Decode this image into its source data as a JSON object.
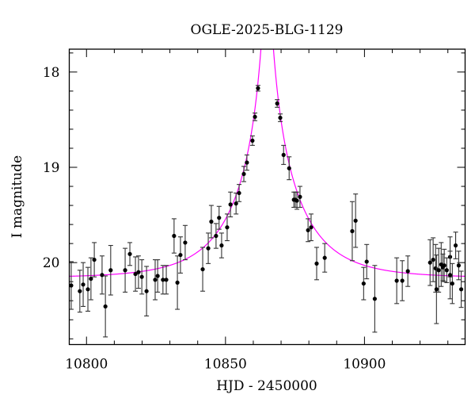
{
  "chart_data": {
    "type": "scatter",
    "title": "OGLE-2025-BLG-1129",
    "xlabel": "HJD - 2450000",
    "ylabel": "I magnitude",
    "xlim": [
      10793.8,
      10936.2
    ],
    "ylim": [
      17.76,
      20.86
    ],
    "y_inverted": true,
    "x_major_ticks": [
      10800,
      10850,
      10900
    ],
    "x_tick_labels": [
      "10800",
      "10850",
      "10900"
    ],
    "x_minor_step": 10,
    "y_major_ticks": [
      18,
      19,
      20
    ],
    "y_tick_labels": [
      "18",
      "19",
      "20"
    ],
    "y_minor_step": 0.2,
    "grid": false,
    "legend": "none",
    "colors": {
      "points": "#000000",
      "errorbars": "#333333",
      "model": "#ff00ff"
    },
    "model": {
      "kind": "point-lens",
      "t0": 10865,
      "tE": 23,
      "u0": 0.05,
      "baseline": 20.16
    },
    "points": [
      {
        "x": 10794.5,
        "y": 20.24,
        "err": 0.25
      },
      {
        "x": 10797.6,
        "y": 20.3,
        "err": 0.22
      },
      {
        "x": 10798.8,
        "y": 20.23,
        "err": 0.23
      },
      {
        "x": 10800.5,
        "y": 20.28,
        "err": 0.23
      },
      {
        "x": 10801.6,
        "y": 20.17,
        "err": 0.22
      },
      {
        "x": 10802.8,
        "y": 19.97,
        "err": 0.18
      },
      {
        "x": 10805.6,
        "y": 20.13,
        "err": 0.2
      },
      {
        "x": 10806.8,
        "y": 20.46,
        "err": 0.32
      },
      {
        "x": 10808.7,
        "y": 20.08,
        "err": 0.26
      },
      {
        "x": 10813.9,
        "y": 20.08,
        "err": 0.23
      },
      {
        "x": 10815.6,
        "y": 19.91,
        "err": 0.12
      },
      {
        "x": 10817.6,
        "y": 20.12,
        "err": 0.18
      },
      {
        "x": 10818.7,
        "y": 20.1,
        "err": 0.17
      },
      {
        "x": 10819.9,
        "y": 20.15,
        "err": 0.18
      },
      {
        "x": 10821.6,
        "y": 20.3,
        "err": 0.26
      },
      {
        "x": 10824.7,
        "y": 20.18,
        "err": 0.21
      },
      {
        "x": 10825.6,
        "y": 20.14,
        "err": 0.17
      },
      {
        "x": 10827.5,
        "y": 20.18,
        "err": 0.15
      },
      {
        "x": 10828.7,
        "y": 20.18,
        "err": 0.15
      },
      {
        "x": 10831.5,
        "y": 19.72,
        "err": 0.18
      },
      {
        "x": 10832.7,
        "y": 20.21,
        "err": 0.28
      },
      {
        "x": 10833.8,
        "y": 19.92,
        "err": 0.19
      },
      {
        "x": 10835.5,
        "y": 19.79,
        "err": 0.18
      },
      {
        "x": 10841.8,
        "y": 20.07,
        "err": 0.23
      },
      {
        "x": 10843.8,
        "y": 19.85,
        "err": 0.16
      },
      {
        "x": 10844.9,
        "y": 19.57,
        "err": 0.17
      },
      {
        "x": 10846.6,
        "y": 19.72,
        "err": 0.13
      },
      {
        "x": 10847.7,
        "y": 19.53,
        "err": 0.12
      },
      {
        "x": 10848.6,
        "y": 19.82,
        "err": 0.13
      },
      {
        "x": 10850.6,
        "y": 19.63,
        "err": 0.14
      },
      {
        "x": 10851.8,
        "y": 19.39,
        "err": 0.13
      },
      {
        "x": 10853.8,
        "y": 19.38,
        "err": 0.11
      },
      {
        "x": 10854.9,
        "y": 19.27,
        "err": 0.09
      },
      {
        "x": 10856.6,
        "y": 19.07,
        "err": 0.08
      },
      {
        "x": 10857.7,
        "y": 18.95,
        "err": 0.08
      },
      {
        "x": 10859.7,
        "y": 18.72,
        "err": 0.05
      },
      {
        "x": 10860.6,
        "y": 18.47,
        "err": 0.04
      },
      {
        "x": 10861.7,
        "y": 18.17,
        "err": 0.03
      },
      {
        "x": 10868.6,
        "y": 18.33,
        "err": 0.04
      },
      {
        "x": 10869.7,
        "y": 18.48,
        "err": 0.04
      },
      {
        "x": 10870.9,
        "y": 18.87,
        "err": 0.1
      },
      {
        "x": 10872.9,
        "y": 19.01,
        "err": 0.12
      },
      {
        "x": 10874.6,
        "y": 19.34,
        "err": 0.08
      },
      {
        "x": 10875.1,
        "y": 19.34,
        "err": 0.08
      },
      {
        "x": 10875.7,
        "y": 19.35,
        "err": 0.09
      },
      {
        "x": 10876.8,
        "y": 19.31,
        "err": 0.11
      },
      {
        "x": 10879.7,
        "y": 19.66,
        "err": 0.12
      },
      {
        "x": 10880.8,
        "y": 19.63,
        "err": 0.14
      },
      {
        "x": 10882.8,
        "y": 20.01,
        "err": 0.17
      },
      {
        "x": 10885.7,
        "y": 19.95,
        "err": 0.15
      },
      {
        "x": 10895.6,
        "y": 19.67,
        "err": 0.31
      },
      {
        "x": 10896.8,
        "y": 19.56,
        "err": 0.28
      },
      {
        "x": 10899.7,
        "y": 20.22,
        "err": 0.17
      },
      {
        "x": 10900.8,
        "y": 19.99,
        "err": 0.18
      },
      {
        "x": 10903.7,
        "y": 20.38,
        "err": 0.35
      },
      {
        "x": 10911.6,
        "y": 20.19,
        "err": 0.24
      },
      {
        "x": 10913.6,
        "y": 20.19,
        "err": 0.21
      },
      {
        "x": 10915.6,
        "y": 20.09,
        "err": 0.16
      },
      {
        "x": 10923.6,
        "y": 20.0,
        "err": 0.24
      },
      {
        "x": 10924.7,
        "y": 19.97,
        "err": 0.23
      },
      {
        "x": 10925.6,
        "y": 20.06,
        "err": 0.25
      },
      {
        "x": 10925.9,
        "y": 20.28,
        "err": 0.36
      },
      {
        "x": 10926.7,
        "y": 20.08,
        "err": 0.23
      },
      {
        "x": 10927.6,
        "y": 20.02,
        "err": 0.23
      },
      {
        "x": 10928.2,
        "y": 20.05,
        "err": 0.14
      },
      {
        "x": 10928.7,
        "y": 20.03,
        "err": 0.17
      },
      {
        "x": 10929.6,
        "y": 20.08,
        "err": 0.13
      },
      {
        "x": 10930.8,
        "y": 19.94,
        "err": 0.21
      },
      {
        "x": 10930.8,
        "y": 20.13,
        "err": 0.25
      },
      {
        "x": 10931.6,
        "y": 20.22,
        "err": 0.21
      },
      {
        "x": 10932.8,
        "y": 19.82,
        "err": 0.14
      },
      {
        "x": 10933.9,
        "y": 20.03,
        "err": 0.15
      },
      {
        "x": 10934.8,
        "y": 20.28,
        "err": 0.19
      }
    ]
  }
}
